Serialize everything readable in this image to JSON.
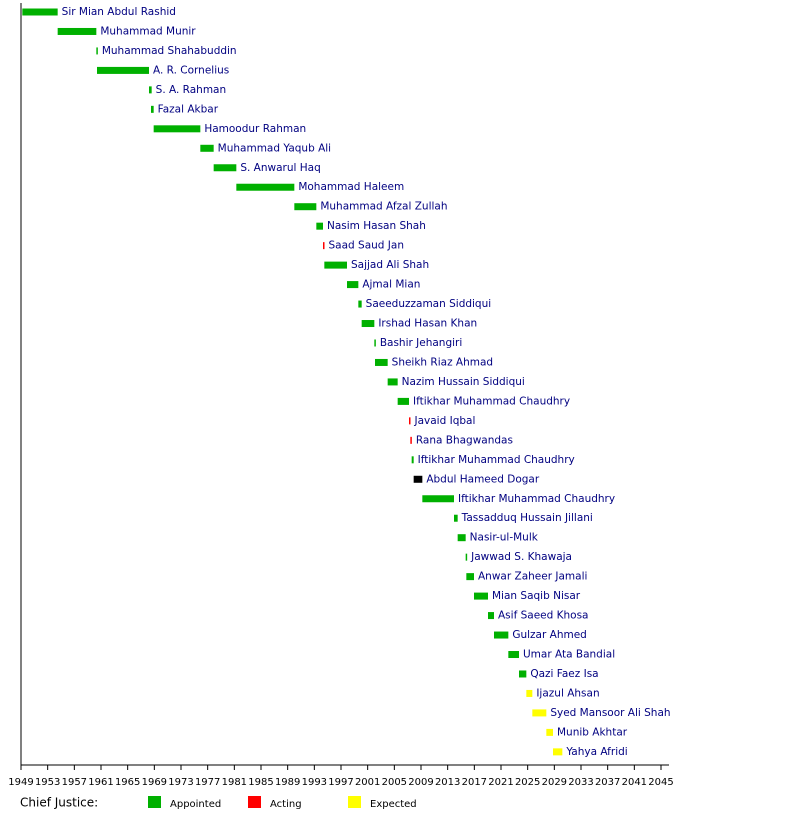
{
  "chart_data": {
    "type": "timeline",
    "categories": [
      "Sir Mian Abdul Rashid",
      "Muhammad Munir",
      "Muhammad Shahabuddin",
      "A. R. Cornelius",
      "S. A. Rahman",
      "Fazal Akbar",
      "Hamoodur Rahman",
      "Muhammad Yaqub Ali",
      "S. Anwarul Haq",
      "Mohammad Haleem",
      "Muhammad Afzal Zullah",
      "Nasim Hasan Shah",
      "Saad Saud Jan",
      "Sajjad Ali Shah",
      "Ajmal Mian",
      "Saeeduzzaman Siddiqui",
      "Irshad Hasan Khan",
      "Bashir Jehangiri",
      "Sheikh Riaz Ahmad",
      "Nazim Hussain Siddiqui",
      "Iftikhar Muhammad Chaudhry",
      "Javaid Iqbal",
      "Rana Bhagwandas",
      "Iftikhar Muhammad Chaudhry",
      "Abdul Hameed Dogar",
      "Iftikhar Muhammad Chaudhry",
      "Tassadduq Hussain Jillani",
      "Nasir-ul-Mulk",
      "Jawwad S. Khawaja",
      "Anwar Zaheer Jamali",
      "Mian Saqib Nisar",
      "Asif Saeed Khosa",
      "Gulzar Ahmed",
      "Umar Ata Bandial",
      "Qazi Faez Isa",
      "Ijazul Ahsan",
      "Syed Mansoor Ali Shah",
      "Munib Akhtar",
      "Yahya Afridi"
    ],
    "start": [
      1949.2,
      1954.5,
      1960.3,
      1960.4,
      1968.2,
      1968.5,
      1968.9,
      1975.9,
      1977.9,
      1981.3,
      1990.0,
      1993.3,
      1994.3,
      1994.5,
      1997.9,
      1999.6,
      2000.1,
      2002.0,
      2002.1,
      2004.0,
      2005.5,
      2007.2,
      2007.4,
      2007.6,
      2007.9,
      2009.2,
      2013.95,
      2014.5,
      2015.7,
      2015.8,
      2016.95,
      2019.05,
      2019.95,
      2022.1,
      2023.7,
      2024.8,
      2025.7,
      2027.8,
      2028.8
    ],
    "end": [
      1954.5,
      1960.3,
      1960.4,
      1968.2,
      1968.6,
      1968.9,
      1975.9,
      1977.9,
      1981.3,
      1990.0,
      1993.3,
      1994.3,
      1994.5,
      1997.9,
      1999.6,
      2000.1,
      2002.0,
      2002.1,
      2004.0,
      2005.5,
      2007.2,
      2007.4,
      2007.6,
      2007.9,
      2009.2,
      2013.95,
      2014.5,
      2015.7,
      2015.8,
      2016.95,
      2019.05,
      2019.95,
      2022.1,
      2023.7,
      2024.8,
      2025.7,
      2027.8,
      2028.8,
      2030.2
    ],
    "colors": [
      "#00b000",
      "#00b000",
      "#00b000",
      "#00b000",
      "#00b000",
      "#00b000",
      "#00b000",
      "#00b000",
      "#00b000",
      "#00b000",
      "#00b000",
      "#00b000",
      "#ff0000",
      "#00b000",
      "#00b000",
      "#00b000",
      "#00b000",
      "#00b000",
      "#00b000",
      "#00b000",
      "#00b000",
      "#ff0000",
      "#ff0000",
      "#00b000",
      "#000000",
      "#00b000",
      "#00b000",
      "#00b000",
      "#00b000",
      "#00b000",
      "#00b000",
      "#00b000",
      "#00b000",
      "#00b000",
      "#00b000",
      "#ffff00",
      "#ffff00",
      "#ffff00",
      "#ffff00"
    ],
    "xlim": [
      1949,
      2045
    ],
    "xticks": [
      1949,
      1953,
      1957,
      1961,
      1965,
      1969,
      1973,
      1977,
      1981,
      1985,
      1989,
      1993,
      1997,
      2001,
      2005,
      2009,
      2013,
      2017,
      2021,
      2025,
      2029,
      2033,
      2037,
      2041,
      2045
    ],
    "legend_title": "Chief Justice:",
    "legend": [
      {
        "name": "Appointed",
        "color": "#00b000"
      },
      {
        "name": "Acting",
        "color": "#ff0000"
      },
      {
        "name": "Expected",
        "color": "#ffff00"
      }
    ]
  }
}
